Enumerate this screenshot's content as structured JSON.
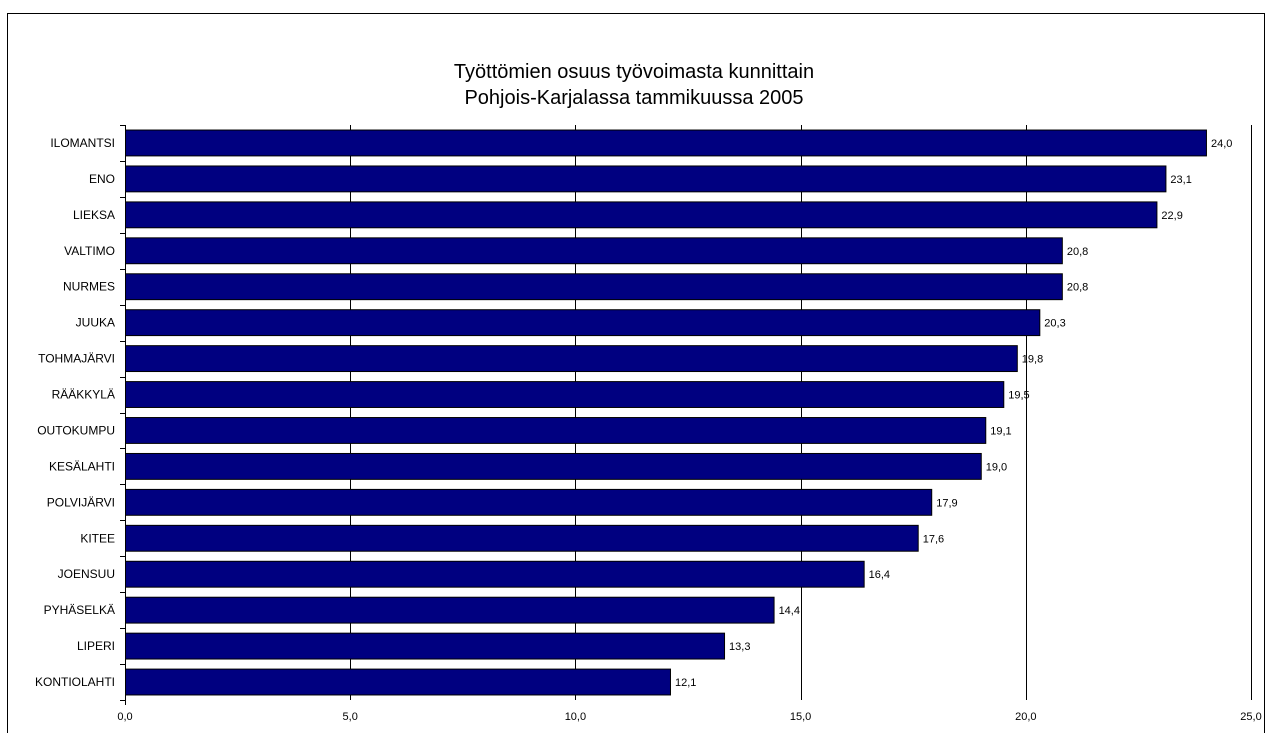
{
  "chart_data": {
    "type": "bar",
    "orientation": "horizontal",
    "title_line1": "Työttömien osuus työvoimasta kunnittain",
    "title_line2": "Pohjois-Karjalassa tammikuussa 2005",
    "xlabel": "",
    "ylabel": "",
    "xlim": [
      0,
      25
    ],
    "x_ticks": [
      0,
      5,
      10,
      15,
      20,
      25
    ],
    "x_tick_labels": [
      "0,0",
      "5,0",
      "10,0",
      "15,0",
      "20,0",
      "25,0"
    ],
    "grid": "vertical",
    "legend": "none",
    "bar_color": "#000080",
    "categories": [
      "ILOMANTSI",
      "ENO",
      "LIEKSA",
      "VALTIMO",
      "NURMES",
      "JUUKA",
      "TOHMAJÄRVI",
      "RÄÄKKYLÄ",
      "OUTOKUMPU",
      "KESÄLAHTI",
      "POLVIJÄRVI",
      "KITEE",
      "JOENSUU",
      "PYHÄSELKÄ",
      "LIPERI",
      "KONTIOLAHTI"
    ],
    "values": [
      24.0,
      23.1,
      22.9,
      20.8,
      20.8,
      20.3,
      19.8,
      19.5,
      19.1,
      19.0,
      17.9,
      17.6,
      16.4,
      14.4,
      13.3,
      12.1
    ],
    "value_labels": [
      "24,0",
      "23,1",
      "22,9",
      "20,8",
      "20,8",
      "20,3",
      "19,8",
      "19,5",
      "19,1",
      "19,0",
      "17,9",
      "17,6",
      "16,4",
      "14,4",
      "13,3",
      "12,1"
    ]
  }
}
